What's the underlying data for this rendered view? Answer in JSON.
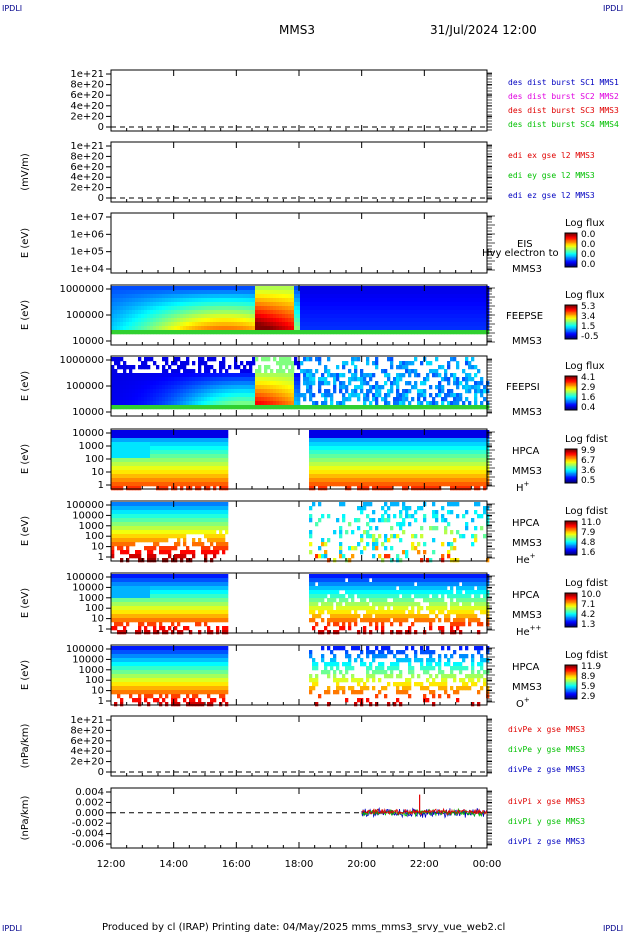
{
  "header": {
    "corner_label": "IPDLI",
    "title": "MMS3",
    "date_time": "31/Jul/2024 12:00"
  },
  "footer": {
    "text": "Produced by cl (IRAP)    Printing date: 04/May/2025    mms_mms3_srvy_vue_web2.cl"
  },
  "time_axis": {
    "ticks": [
      "12:00",
      "14:00",
      "16:00",
      "18:00",
      "20:00",
      "22:00",
      "00:00"
    ]
  },
  "colors": {
    "mms1": "#0000c0",
    "mms2": "#e000e0",
    "mms3": "#e00000",
    "mms4": "#00c000",
    "x": "#e00000",
    "y": "#00c000",
    "z": "#0000c0"
  },
  "chart_data": [
    {
      "type": "line",
      "ylabel": "",
      "yticks": [
        "1e+21",
        "8e+20",
        "6e+20",
        "4e+20",
        "2e+20",
        "0"
      ],
      "zero_line": "dashed",
      "series": [
        {
          "name": "des dist burst SC1 MMS1",
          "color": "mms1",
          "values": []
        },
        {
          "name": "des dist burst SC2 MMS2",
          "color": "mms2",
          "values": []
        },
        {
          "name": "des dist burst SC3 MMS3",
          "color": "mms3",
          "values": []
        },
        {
          "name": "des dist burst SC4 MMS4",
          "color": "mms4",
          "values": []
        }
      ]
    },
    {
      "type": "line",
      "ylabel": "(mV/m)",
      "yticks": [
        "1e+21",
        "8e+20",
        "6e+20",
        "4e+20",
        "2e+20",
        "0"
      ],
      "zero_line": "dashed",
      "series": [
        {
          "name": "edi ex gse l2 MMS3",
          "color": "x",
          "values": []
        },
        {
          "name": "edi ey gse l2 MMS3",
          "color": "y",
          "values": []
        },
        {
          "name": "edi ez gse l2 MMS3",
          "color": "z",
          "values": []
        }
      ]
    },
    {
      "type": "heatmap",
      "ylabel": "E (eV)",
      "yticks": [
        "1e+07",
        "1e+06",
        "1e+05",
        "1e+04"
      ],
      "instrument": "EIS",
      "overlap_text": "Hvy electron to",
      "spacecraft": "MMS3",
      "species": "",
      "colorbar_title": "Log flux",
      "colorbar_ticks": [
        "0.0",
        "0.0",
        "0.0",
        "0.0"
      ],
      "data": "none"
    },
    {
      "type": "heatmap",
      "ylabel": "E (eV)",
      "yticks": [
        "1000000",
        "100000",
        "10000"
      ],
      "instrument": "FEEPSE",
      "spacecraft": "MMS3",
      "species": "",
      "colorbar_title": "Log flux",
      "colorbar_ticks": [
        "5.3",
        "3.4",
        "1.5",
        "-0.5"
      ],
      "data": "continuous"
    },
    {
      "type": "heatmap",
      "ylabel": "E (eV)",
      "yticks": [
        "1000000",
        "100000",
        "10000"
      ],
      "instrument": "FEEPSI",
      "spacecraft": "MMS3",
      "species": "",
      "colorbar_title": "Log flux",
      "colorbar_ticks": [
        "4.1",
        "2.9",
        "1.6",
        "0.4"
      ],
      "data": "noisy"
    },
    {
      "type": "heatmap",
      "ylabel": "E (eV)",
      "yticks": [
        "10000",
        "1000",
        "100",
        "10",
        "1"
      ],
      "instrument": "HPCA",
      "spacecraft": "MMS3",
      "species": "H",
      "species_charge": "+",
      "colorbar_title": "Log fdist",
      "colorbar_ticks": [
        "9.9",
        "6.7",
        "3.6",
        "0.5"
      ],
      "data_gap": [
        "15:40",
        "18:15"
      ]
    },
    {
      "type": "heatmap",
      "ylabel": "E (eV)",
      "yticks": [
        "100000",
        "10000",
        "1000",
        "100",
        "10",
        "1"
      ],
      "instrument": "HPCA",
      "spacecraft": "MMS3",
      "species": "He",
      "species_charge": "+",
      "colorbar_title": "Log fdist",
      "colorbar_ticks": [
        "11.0",
        "7.9",
        "4.8",
        "1.6"
      ],
      "data_gap": [
        "15:40",
        "18:15"
      ]
    },
    {
      "type": "heatmap",
      "ylabel": "E (eV)",
      "yticks": [
        "100000",
        "10000",
        "1000",
        "100",
        "10",
        "1"
      ],
      "instrument": "HPCA",
      "spacecraft": "MMS3",
      "species": "He",
      "species_charge": "++",
      "colorbar_title": "Log fdist",
      "colorbar_ticks": [
        "10.0",
        "7.1",
        "4.2",
        "1.3"
      ],
      "data_gap": [
        "15:40",
        "18:15"
      ]
    },
    {
      "type": "heatmap",
      "ylabel": "E (eV)",
      "yticks": [
        "100000",
        "10000",
        "1000",
        "100",
        "10",
        "1"
      ],
      "instrument": "HPCA",
      "spacecraft": "MMS3",
      "species": "O",
      "species_charge": "+",
      "colorbar_title": "Log fdist",
      "colorbar_ticks": [
        "11.9",
        "8.9",
        "5.9",
        "2.9"
      ],
      "data_gap": [
        "15:40",
        "18:15"
      ]
    },
    {
      "type": "line",
      "ylabel": "(nPa/km)",
      "yticks": [
        "1e+21",
        "8e+20",
        "6e+20",
        "4e+20",
        "2e+20",
        "0"
      ],
      "zero_line": "dashed",
      "series": [
        {
          "name": "divPe x gse MMS3",
          "color": "x",
          "values": []
        },
        {
          "name": "divPe y gse MMS3",
          "color": "y",
          "values": []
        },
        {
          "name": "divPe z gse MMS3",
          "color": "z",
          "values": []
        }
      ]
    },
    {
      "type": "line",
      "ylabel": "(nPa/km)",
      "yticks": [
        "0.004",
        "0.002",
        "0.000",
        "-0.002",
        "-0.004",
        "-0.006"
      ],
      "zero_line": "dashed",
      "data_start": "20:00",
      "series": [
        {
          "name": "divPi x gse MMS3",
          "color": "x",
          "noise": 0.0004
        },
        {
          "name": "divPi y gse MMS3",
          "color": "y",
          "noise": 0.0005
        },
        {
          "name": "divPi z gse MMS3",
          "color": "z",
          "noise": 0.0007
        }
      ]
    }
  ]
}
